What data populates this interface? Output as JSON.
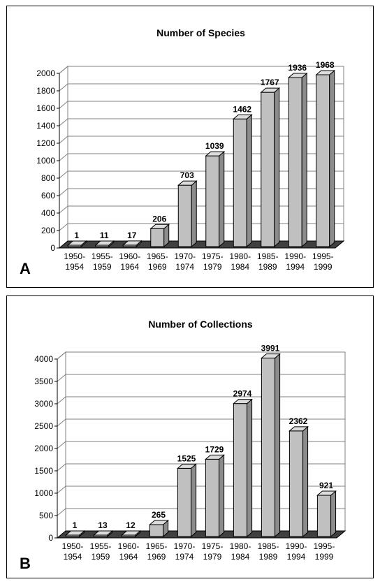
{
  "chart_data": [
    {
      "type": "bar",
      "panel_label": "A",
      "title": "Number of Species",
      "categories": [
        "1950-1954",
        "1955-1959",
        "1960-1964",
        "1965-1969",
        "1970-1974",
        "1975-1979",
        "1980-1984",
        "1985-1989",
        "1990-1994",
        "1995-1999"
      ],
      "values": [
        1,
        11,
        17,
        206,
        703,
        1039,
        1462,
        1767,
        1936,
        1968
      ],
      "ylim": [
        0,
        2000
      ],
      "yticks": [
        0,
        200,
        400,
        600,
        800,
        1000,
        1200,
        1400,
        1600,
        1800,
        2000
      ],
      "grid": true,
      "bar_color": "#c0c0c0",
      "floor_color": "#404040"
    },
    {
      "type": "bar",
      "panel_label": "B",
      "title": "Number of Collections",
      "categories": [
        "1950-1954",
        "1955-1959",
        "1960-1964",
        "1965-1969",
        "1970-1974",
        "1975-1979",
        "1980-1984",
        "1985-1989",
        "1990-1994",
        "1995-1999"
      ],
      "values": [
        1,
        13,
        12,
        265,
        1525,
        1729,
        2974,
        3991,
        2362,
        921
      ],
      "ylim": [
        0,
        4000
      ],
      "yticks": [
        0,
        500,
        1000,
        1500,
        2000,
        2500,
        3000,
        3500,
        4000
      ],
      "grid": true,
      "bar_color": "#c0c0c0",
      "floor_color": "#404040"
    }
  ]
}
